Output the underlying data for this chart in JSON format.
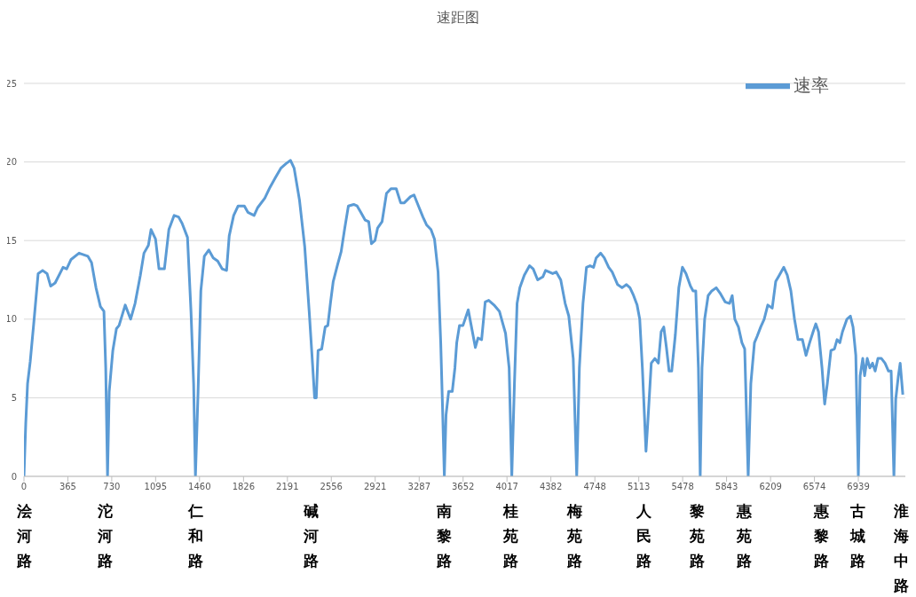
{
  "chart_data": {
    "type": "line",
    "title": "速距图",
    "xlim": [
      0,
      7330
    ],
    "xticks": [
      0,
      365,
      730,
      1095,
      1460,
      1826,
      2191,
      2556,
      2921,
      3287,
      3652,
      4017,
      4382,
      4748,
      5113,
      5478,
      5843,
      6209,
      6574,
      6939
    ],
    "ylim": [
      0,
      25
    ],
    "yticks": [
      0,
      5,
      10,
      15,
      20,
      25
    ],
    "grid": "y",
    "legend": "top right",
    "marker": "none",
    "line_style": "solid",
    "series": [
      {
        "name": "速率",
        "color": "#5b9bd5",
        "x": [
          0,
          15,
          30,
          52,
          81,
          118,
          155,
          192,
          222,
          259,
          325,
          355,
          392,
          458,
          495,
          532,
          562,
          599,
          636,
          665,
          680,
          695,
          709,
          739,
          769,
          791,
          842,
          887,
          924,
          968,
          998,
          1035,
          1057,
          1094,
          1123,
          1168,
          1205,
          1249,
          1286,
          1315,
          1360,
          1389,
          1411,
          1426,
          1448,
          1471,
          1500,
          1537,
          1574,
          1611,
          1648,
          1685,
          1707,
          1744,
          1781,
          1833,
          1862,
          1914,
          1944,
          2003,
          2047,
          2091,
          2136,
          2180,
          2217,
          2247,
          2291,
          2335,
          2372,
          2402,
          2417,
          2431,
          2446,
          2476,
          2505,
          2527,
          2550,
          2572,
          2609,
          2638,
          2668,
          2698,
          2742,
          2771,
          2801,
          2838,
          2867,
          2890,
          2919,
          2941,
          2978,
          3015,
          3052,
          3096,
          3133,
          3163,
          3215,
          3244,
          3281,
          3318,
          3348,
          3385,
          3414,
          3444,
          3466,
          3481,
          3496,
          3510,
          3532,
          3562,
          3584,
          3599,
          3622,
          3651,
          3695,
          3717,
          3754,
          3776,
          3806,
          3836,
          3865,
          3909,
          3954,
          3983,
          4005,
          4035,
          4057,
          4079,
          4101,
          4124,
          4161,
          4205,
          4235,
          4272,
          4316,
          4338,
          4368,
          4397,
          4427,
          4464,
          4501,
          4531,
          4568,
          4597,
          4619,
          4649,
          4678,
          4708,
          4737,
          4759,
          4796,
          4826,
          4863,
          4892,
          4937,
          4974,
          5011,
          5040,
          5070,
          5099,
          5121,
          5143,
          5173,
          5188,
          5217,
          5247,
          5276,
          5299,
          5321,
          5343,
          5365,
          5387,
          5417,
          5446,
          5476,
          5506,
          5543,
          5565,
          5587,
          5609,
          5624,
          5639,
          5661,
          5690,
          5720,
          5757,
          5794,
          5831,
          5868,
          5890,
          5912,
          5942,
          5971,
          5994,
          6023,
          6045,
          6075,
          6097,
          6127,
          6156,
          6186,
          6223,
          6252,
          6282,
          6319,
          6348,
          6378,
          6408,
          6437,
          6474,
          6504,
          6534,
          6563,
          6585,
          6608,
          6637,
          6659,
          6681,
          6711,
          6740,
          6762,
          6785,
          6807,
          6844,
          6873,
          6895,
          6918,
          6939,
          6954,
          6976,
          6991,
          7013,
          7035,
          7057,
          7079,
          7102,
          7131,
          7161,
          7190,
          7212,
          7235,
          7250,
          7272,
          7287,
          7309
        ],
        "values": [
          0,
          3.4,
          5.9,
          7.3,
          9.7,
          12.9,
          13.1,
          12.9,
          12.1,
          12.3,
          13.3,
          13.2,
          13.8,
          14.2,
          14.1,
          14.0,
          13.6,
          12.0,
          10.8,
          10.5,
          6.9,
          0,
          5.4,
          8.0,
          9.4,
          9.6,
          10.9,
          10.0,
          11.0,
          12.8,
          14.2,
          14.7,
          15.7,
          15.1,
          13.2,
          13.2,
          15.7,
          16.6,
          16.5,
          16.1,
          15.2,
          10.5,
          5.9,
          0,
          5.4,
          11.8,
          14.0,
          14.4,
          13.9,
          13.7,
          13.2,
          13.1,
          15.3,
          16.6,
          17.2,
          17.2,
          16.8,
          16.6,
          17.1,
          17.7,
          18.4,
          19.0,
          19.6,
          19.9,
          20.1,
          19.6,
          17.6,
          14.6,
          10.5,
          6.9,
          5.0,
          5.0,
          8.0,
          8.1,
          9.5,
          9.6,
          11.1,
          12.4,
          13.5,
          14.3,
          15.8,
          17.2,
          17.3,
          17.2,
          16.8,
          16.3,
          16.2,
          14.8,
          15.0,
          15.8,
          16.2,
          18.0,
          18.3,
          18.3,
          17.4,
          17.4,
          17.8,
          17.9,
          17.2,
          16.5,
          16.0,
          15.7,
          15.1,
          13.0,
          8.5,
          4.4,
          0,
          3.9,
          5.4,
          5.4,
          6.9,
          8.5,
          9.6,
          9.6,
          10.6,
          9.7,
          8.2,
          8.8,
          8.7,
          11.1,
          11.2,
          10.9,
          10.5,
          9.7,
          9.1,
          6.9,
          0,
          5.9,
          11.0,
          12.0,
          12.8,
          13.4,
          13.2,
          12.5,
          12.7,
          13.1,
          13.0,
          12.9,
          13.0,
          12.5,
          11.0,
          10.2,
          7.5,
          0,
          6.9,
          11.0,
          13.3,
          13.4,
          13.3,
          13.9,
          14.2,
          13.9,
          13.3,
          13.0,
          12.2,
          12.0,
          12.2,
          12.0,
          11.5,
          10.9,
          10.0,
          6.9,
          1.6,
          3.4,
          7.2,
          7.5,
          7.2,
          9.2,
          9.5,
          8.2,
          6.7,
          6.7,
          9.0,
          12.0,
          13.3,
          12.9,
          12.1,
          11.8,
          11.8,
          6.9,
          0,
          6.9,
          10.0,
          11.5,
          11.8,
          12.0,
          11.6,
          11.1,
          11.0,
          11.5,
          10.0,
          9.5,
          8.5,
          8.1,
          0,
          5.9,
          8.5,
          8.9,
          9.5,
          10.0,
          10.9,
          10.7,
          12.4,
          12.8,
          13.3,
          12.8,
          11.8,
          10.0,
          8.7,
          8.7,
          7.7,
          8.5,
          9.2,
          9.7,
          9.2,
          6.9,
          4.6,
          5.9,
          8.0,
          8.1,
          8.7,
          8.5,
          9.2,
          10.0,
          10.2,
          9.5,
          7.7,
          0,
          6.4,
          7.5,
          6.4,
          7.5,
          6.9,
          7.2,
          6.7,
          7.5,
          7.5,
          7.2,
          6.7,
          6.7,
          0,
          4.9,
          6.4,
          7.2,
          5.2
        ]
      }
    ],
    "annotations": [
      "浍河路",
      "沱河路",
      "仁和路",
      "碱河路",
      "南黎路",
      "桂苑路",
      "梅苑路",
      "人民路",
      "黎苑路",
      "惠苑路",
      "惠黎路",
      "古城路",
      "淮海中路"
    ]
  }
}
